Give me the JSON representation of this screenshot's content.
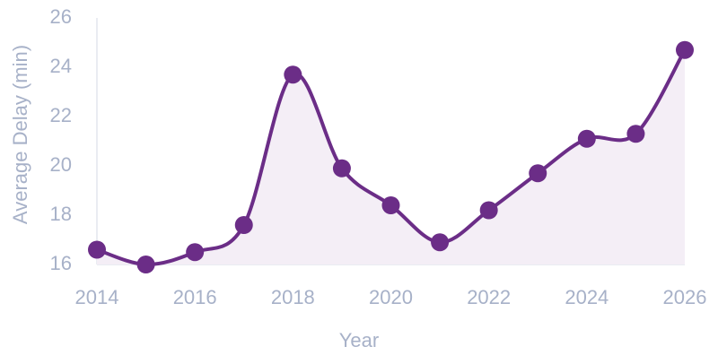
{
  "chart_data": {
    "type": "line",
    "x_label": "Year",
    "y_label": "Average Delay (min)",
    "x": [
      2014,
      2015,
      2016,
      2017,
      2018,
      2019,
      2020,
      2021,
      2022,
      2023,
      2024,
      2025,
      2026
    ],
    "series": [
      {
        "color": "#6b2d87",
        "values": [
          16.6,
          16.0,
          16.5,
          17.6,
          23.7,
          19.9,
          18.4,
          16.9,
          18.2,
          19.7,
          21.1,
          21.3,
          24.7
        ]
      }
    ],
    "area": true,
    "area_color": "#f4eef6",
    "smooth": true,
    "xlim": [
      2014,
      2026
    ],
    "xticks": [
      2014,
      2016,
      2018,
      2020,
      2022,
      2024,
      2026
    ],
    "ylim": [
      16,
      26
    ],
    "yticks": [
      16,
      18,
      20,
      22,
      24,
      26
    ]
  }
}
